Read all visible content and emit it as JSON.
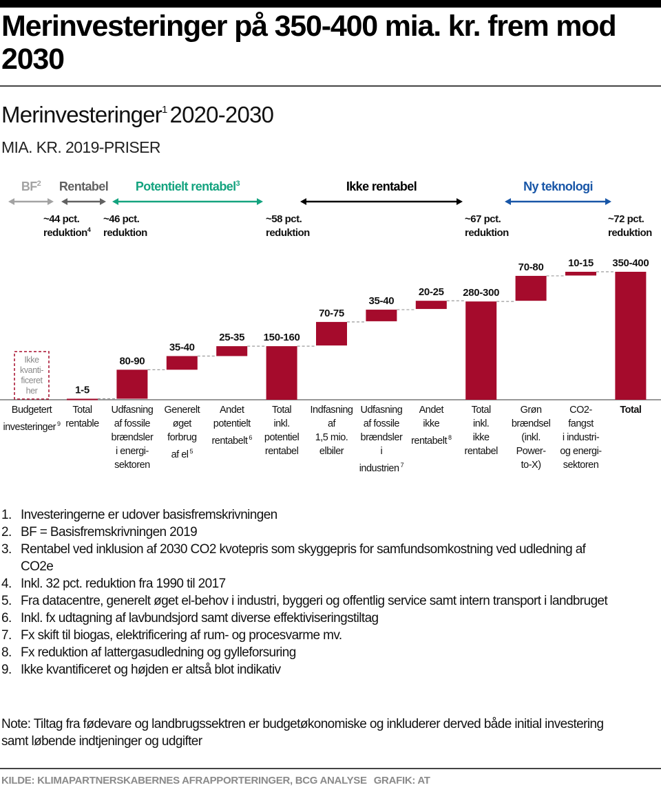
{
  "header": {
    "title": "Merinvesteringer på 350-400 mia. kr. frem mod 2030",
    "subtitle_main": "Merinvesteringer",
    "subtitle_sup": "1",
    "subtitle_years": "2020-2030",
    "unit": "MIA. KR. 2019-PRISER"
  },
  "colors": {
    "bar": "#a50b2c",
    "bf": "#a3a3a3",
    "rentabel": "#616161",
    "potentielt": "#14a37f",
    "ikke": "#000000",
    "ny": "#1856a7",
    "dashed": "#9a9a9a"
  },
  "chart_data": {
    "type": "waterfall",
    "title": "Merinvesteringer 2020-2030",
    "ylabel": "Mia. kr. 2019-priser",
    "ylim": [
      0,
      400
    ],
    "grid": false,
    "categories": [
      {
        "label_lines": [
          "Budgetert",
          "investeringer"
        ],
        "sup": "9",
        "value_label": "",
        "kind": "placeholder",
        "start": 0,
        "end": 0,
        "box_text": [
          "Ikke",
          "kvanti-",
          "ficeret",
          "her"
        ]
      },
      {
        "label_lines": [
          "Total",
          "rentable"
        ],
        "sup": "",
        "value_label": "1-5",
        "kind": "total",
        "start": 0,
        "end": 3
      },
      {
        "label_lines": [
          "Udfasning",
          "af fossile",
          "brændsler",
          "i energi-",
          "sektoren"
        ],
        "sup": "",
        "value_label": "80-90",
        "kind": "step",
        "start": 3,
        "end": 88
      },
      {
        "label_lines": [
          "Generelt",
          "øget",
          "forbrug",
          "af el"
        ],
        "sup": "5",
        "value_label": "35-40",
        "kind": "step",
        "start": 88,
        "end": 128
      },
      {
        "label_lines": [
          "Andet",
          "potentielt",
          "rentabelt"
        ],
        "sup": "6",
        "value_label": "25-35",
        "kind": "step",
        "start": 128,
        "end": 157
      },
      {
        "label_lines": [
          "Total",
          "inkl.",
          "potentiel",
          "rentabel"
        ],
        "sup": "",
        "value_label": "150-160",
        "kind": "total",
        "start": 0,
        "end": 157
      },
      {
        "label_lines": [
          "Indfasning",
          "af",
          "1,5 mio.",
          "elbiler"
        ],
        "sup": "",
        "value_label": "70-75",
        "kind": "step",
        "start": 159,
        "end": 228
      },
      {
        "label_lines": [
          "Udfasning",
          "af fossile",
          "brændsler",
          "i",
          "industrien"
        ],
        "sup": "7",
        "value_label": "35-40",
        "kind": "step",
        "start": 230,
        "end": 264
      },
      {
        "label_lines": [
          "Andet",
          "ikke",
          "rentabelt"
        ],
        "sup": "8",
        "value_label": "20-25",
        "kind": "step",
        "start": 266,
        "end": 290
      },
      {
        "label_lines": [
          "Total",
          "inkl.",
          "ikke",
          "rentabel"
        ],
        "sup": "",
        "value_label": "280-300",
        "kind": "total",
        "start": 0,
        "end": 288
      },
      {
        "label_lines": [
          "Grøn",
          "brændsel",
          "(inkl.",
          "Power-",
          "to-X)"
        ],
        "sup": "",
        "value_label": "70-80",
        "kind": "step",
        "start": 290,
        "end": 363
      },
      {
        "label_lines": [
          "CO2-",
          "fangst",
          "i industri-",
          "og energi-",
          "sektoren"
        ],
        "sup": "",
        "value_label": "10-15",
        "kind": "step",
        "start": 364,
        "end": 375
      },
      {
        "label_lines": [
          "Total"
        ],
        "sup": "",
        "value_label": "350-400",
        "kind": "total_bold",
        "start": 0,
        "end": 375
      }
    ],
    "phases": [
      {
        "label": "BF",
        "sup": "2",
        "color_key": "bf",
        "from": 0,
        "to": 0
      },
      {
        "label": "Rentabel",
        "sup": "",
        "color_key": "rentabel",
        "from": 1,
        "to": 1
      },
      {
        "label": "Potentielt rentabel",
        "sup": "3",
        "color_key": "potentielt",
        "from": 2,
        "to": 5
      },
      {
        "label": "Ikke rentabel",
        "sup": "",
        "color_key": "ikke",
        "from": 6,
        "to": 9
      },
      {
        "label": "Ny teknologi",
        "sup": "",
        "color_key": "ny",
        "from": 10,
        "to": 12
      }
    ],
    "reductions": [
      {
        "line1": "~44 pct.",
        "line2": "reduktion",
        "sup": "4",
        "after_index": 0
      },
      {
        "line1": "~46 pct.",
        "line2": "reduktion",
        "sup": "",
        "after_index": 1
      },
      {
        "line1": "~58 pct.",
        "line2": "reduktion",
        "sup": "",
        "after_index": 5
      },
      {
        "line1": "~67 pct.",
        "line2": "reduktion",
        "sup": "",
        "after_index": 9
      },
      {
        "line1": "~72 pct.",
        "line2": "reduktion",
        "sup": "",
        "after_index": 12
      }
    ]
  },
  "footnotes": [
    {
      "num": "1.",
      "text": "Investeringerne er udover basisfremskrivningen"
    },
    {
      "num": "2.",
      "text": "BF = Basisfremskrivningen 2019"
    },
    {
      "num": "3.",
      "text": "Rentabel ved inklusion af 2030 CO2 kvotepris som skyggepris for samfundsomkostning ved udledning af CO2e"
    },
    {
      "num": "4.",
      "text": "Inkl. 32 pct. reduktion fra 1990 til 2017"
    },
    {
      "num": "5.",
      "text": "Fra datacentre, generelt øget el-behov i industri, byggeri og offentlig service samt intern transport i landbruget"
    },
    {
      "num": "6.",
      "text": "Inkl. fx udtagning af lavbundsjord samt diverse effektiviseringstiltag"
    },
    {
      "num": "7.",
      "text": "Fx skift til biogas, elektrificering af rum- og procesvarme mv."
    },
    {
      "num": "8.",
      "text": "Fx reduktion af lattergasudledning og gylleforsuring"
    },
    {
      "num": "9.",
      "text": "Ikke kvantificeret og højden er altså blot indikativ"
    }
  ],
  "note": "Note: Tiltag fra fødevare og landbrugssektren er budgetøkonomiske og inkluderer derved både initial investering samt løbende indtjeninger og udgifter",
  "source": {
    "kilde": "KILDE: KLIMAPARTNERSKABERNES AFRAPPORTERINGER, BCG ANALYSE",
    "grafik": "GRAFIK: AT"
  }
}
